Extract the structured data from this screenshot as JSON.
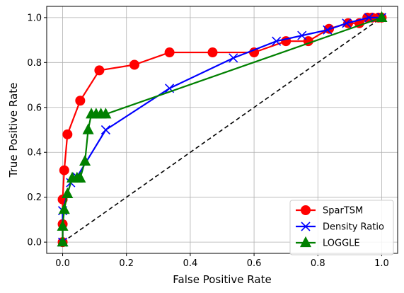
{
  "chart_data": {
    "type": "line",
    "title": "",
    "xlabel": "False Positive Rate",
    "ylabel": "True Positive Rate",
    "xlim": [
      -0.05,
      1.05
    ],
    "ylim": [
      -0.05,
      1.05
    ],
    "xticks": [
      0.0,
      0.2,
      0.4,
      0.6,
      0.8,
      1.0
    ],
    "yticks": [
      0.0,
      0.2,
      0.4,
      0.6,
      0.8,
      1.0
    ],
    "xtick_labels": [
      "0.0",
      "0.2",
      "0.4",
      "0.6",
      "0.8",
      "1.0"
    ],
    "ytick_labels": [
      "0.0",
      "0.2",
      "0.4",
      "0.6",
      "0.8",
      "1.0"
    ],
    "grid": true,
    "legend_position": "lower-right",
    "series": [
      {
        "name": "SparTSM",
        "color": "#ff0000",
        "marker": "circle",
        "points": [
          [
            0.0,
            0.0
          ],
          [
            0.0,
            0.08
          ],
          [
            0.0,
            0.19
          ],
          [
            0.005,
            0.32
          ],
          [
            0.015,
            0.48
          ],
          [
            0.055,
            0.63
          ],
          [
            0.115,
            0.765
          ],
          [
            0.225,
            0.79
          ],
          [
            0.335,
            0.845
          ],
          [
            0.47,
            0.845
          ],
          [
            0.6,
            0.845
          ],
          [
            0.7,
            0.895
          ],
          [
            0.77,
            0.895
          ],
          [
            0.835,
            0.95
          ],
          [
            0.895,
            0.975
          ],
          [
            0.93,
            0.975
          ],
          [
            0.955,
            1.0
          ],
          [
            0.97,
            1.0
          ],
          [
            0.99,
            1.0
          ],
          [
            1.0,
            1.0
          ]
        ]
      },
      {
        "name": "Density Ratio",
        "color": "#0000ff",
        "marker": "x",
        "points": [
          [
            0.0,
            0.0
          ],
          [
            0.0,
            0.14
          ],
          [
            0.025,
            0.265
          ],
          [
            0.045,
            0.29
          ],
          [
            0.135,
            0.5
          ],
          [
            0.335,
            0.685
          ],
          [
            0.535,
            0.82
          ],
          [
            0.67,
            0.895
          ],
          [
            0.75,
            0.92
          ],
          [
            0.83,
            0.945
          ],
          [
            0.89,
            0.975
          ],
          [
            0.96,
            1.0
          ],
          [
            1.0,
            1.0
          ]
        ]
      },
      {
        "name": "LOGGLE",
        "color": "#008000",
        "marker": "triangle",
        "points": [
          [
            0.0,
            0.0
          ],
          [
            0.0,
            0.07
          ],
          [
            0.005,
            0.145
          ],
          [
            0.015,
            0.215
          ],
          [
            0.03,
            0.285
          ],
          [
            0.045,
            0.285
          ],
          [
            0.055,
            0.285
          ],
          [
            0.07,
            0.36
          ],
          [
            0.08,
            0.5
          ],
          [
            0.09,
            0.57
          ],
          [
            0.105,
            0.57
          ],
          [
            0.12,
            0.57
          ],
          [
            0.135,
            0.57
          ],
          [
            1.0,
            1.0
          ]
        ]
      },
      {
        "name": "",
        "color": "#000000",
        "marker": "none",
        "dashed": true,
        "points": [
          [
            0.0,
            0.0
          ],
          [
            1.0,
            1.0
          ]
        ]
      }
    ]
  }
}
